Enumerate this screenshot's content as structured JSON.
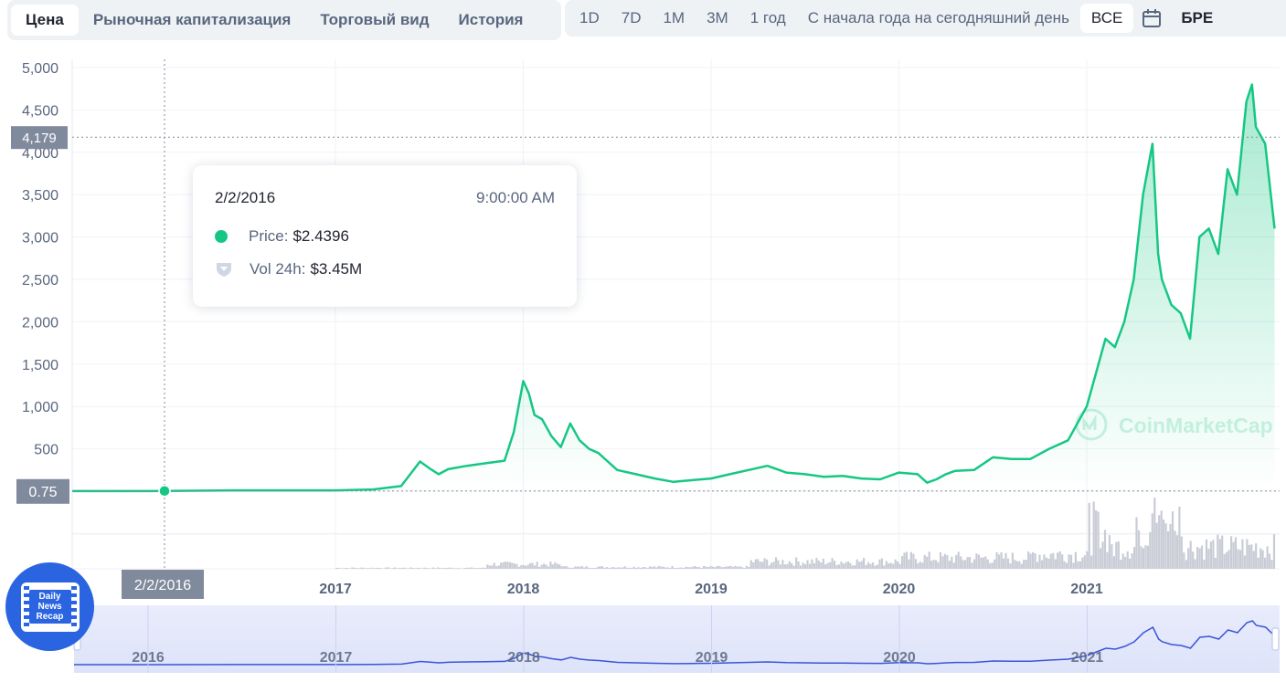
{
  "tabs": [
    "Цена",
    "Рыночная капитализация",
    "Торговый вид",
    "История"
  ],
  "ranges": [
    "1D",
    "7D",
    "1M",
    "3M",
    "1 год",
    "С начала года на сегодняшний день",
    "ВСЕ"
  ],
  "range_cut_label": "БРЕ",
  "tooltip": {
    "date": "2/2/2016",
    "time": "9:00:00 AM",
    "price_label": "Price:",
    "price_value": "$2.4396",
    "vol_label": "Vol 24h:",
    "vol_value": "$3.45M"
  },
  "watermark": "CoinMarketCap",
  "badge": {
    "line1": "Daily",
    "line2": "News",
    "line3": "Recap"
  },
  "colors": {
    "line": "#16c784",
    "volume": "#c9ccd6",
    "navigator": "#3a55d8",
    "marker_label_bg": "#808a9d"
  },
  "chart_data": {
    "type": "area",
    "y_ticks": [
      "5,000",
      "4,500",
      "4,000",
      "3,500",
      "3,000",
      "2,500",
      "2,000",
      "1,500",
      "1,000",
      "500"
    ],
    "x_ticks": [
      "2017",
      "2018",
      "2019",
      "2020",
      "2021"
    ],
    "navigator_ticks": [
      "2016",
      "2017",
      "2018",
      "2019",
      "2020",
      "2021"
    ],
    "y_range": [
      0,
      5000
    ],
    "y_marker": "4,179",
    "price_marker": "0.75",
    "cursor_date": "2/2/2016",
    "grid": true,
    "series": [
      {
        "type": "line",
        "x": [
          2015.6,
          2016.0,
          2016.09,
          2016.5,
          2017.0,
          2017.2,
          2017.35,
          2017.45,
          2017.5,
          2017.55,
          2017.6,
          2017.7,
          2017.8,
          2017.9,
          2017.95,
          2018.0,
          2018.03,
          2018.06,
          2018.1,
          2018.15,
          2018.2,
          2018.25,
          2018.3,
          2018.35,
          2018.4,
          2018.45,
          2018.5,
          2018.6,
          2018.7,
          2018.8,
          2018.9,
          2019.0,
          2019.1,
          2019.2,
          2019.3,
          2019.4,
          2019.5,
          2019.6,
          2019.7,
          2019.8,
          2019.9,
          2020.0,
          2020.1,
          2020.15,
          2020.2,
          2020.25,
          2020.3,
          2020.4,
          2020.5,
          2020.6,
          2020.7,
          2020.8,
          2020.9,
          2021.0,
          2021.05,
          2021.1,
          2021.15,
          2021.2,
          2021.25,
          2021.3,
          2021.35,
          2021.38,
          2021.4,
          2021.45,
          2021.5,
          2021.55,
          2021.6,
          2021.65,
          2021.7,
          2021.75,
          2021.8,
          2021.85,
          2021.88,
          2021.9,
          2021.95,
          2022.0
        ],
        "y": [
          0.75,
          0.75,
          2.44,
          10,
          10,
          20,
          60,
          350,
          270,
          200,
          260,
          300,
          330,
          360,
          700,
          1300,
          1150,
          900,
          850,
          650,
          520,
          800,
          600,
          500,
          450,
          350,
          250,
          200,
          150,
          110,
          130,
          150,
          200,
          250,
          300,
          220,
          200,
          170,
          180,
          150,
          140,
          220,
          200,
          100,
          140,
          200,
          240,
          250,
          400,
          380,
          380,
          500,
          600,
          1000,
          1400,
          1800,
          1700,
          2000,
          2500,
          3500,
          4100,
          2800,
          2500,
          2200,
          2100,
          1800,
          3000,
          3100,
          2800,
          3800,
          3500,
          4600,
          4800,
          4300,
          4100,
          3100
        ]
      }
    ]
  }
}
